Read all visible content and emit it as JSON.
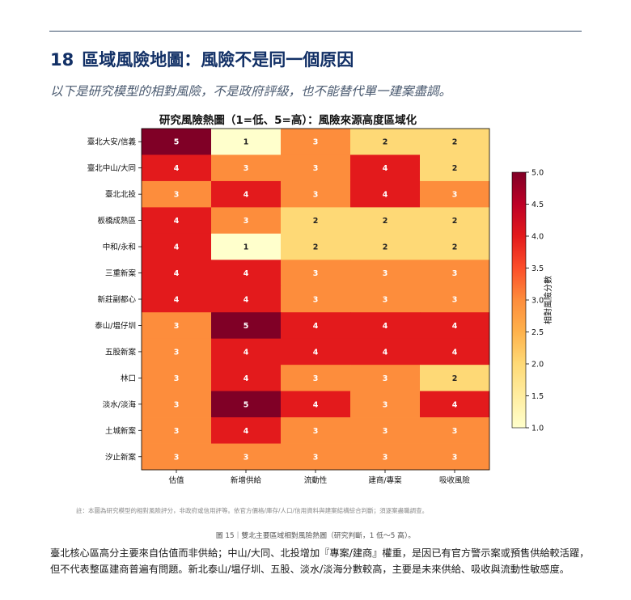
{
  "page": {
    "section_number": "18",
    "section_title": "區域風險地圖：風險不是同一個原因",
    "subtitle": "以下是研究模型的相對風險，不是政府評級，也不能替代單一建案盡調。",
    "note": "註：本圖為研究模型的相對風險評分，非政府或信用評等。依官方價格/庫存/人口/信用資料與建案結構綜合判斷；須逐案盡職調查。",
    "caption": "圖 15｜雙北主要區域相對風險熱圖（研究判斷，1 低～5 高）。",
    "paragraph_line1": "臺北核心區高分主要來自估值而非供給；中山/大同、北投增加『專案/建商』權重，是因已有官方警示案或預售供給較活躍，",
    "paragraph_line2": "但不代表整區建商普遍有問題。新北泰山/塭仔圳、五股、淡水/淡海分數較高，主要是未來供給、吸收與流動性敏感度。"
  },
  "chart_data": {
    "type": "heatmap",
    "title": "研究風險熱圖（1=低、5=高）：風險來源高度區域化",
    "x_categories": [
      "估值",
      "新增供給",
      "流動性",
      "建商/專案",
      "吸收風險"
    ],
    "y_categories": [
      "臺北大安/信義",
      "臺北中山/大同",
      "臺北北投",
      "板橋成熟區",
      "中和/永和",
      "三重新案",
      "新莊副都心",
      "泰山/塭仔圳",
      "五股新案",
      "林口",
      "淡水/淡海",
      "土城新案",
      "汐止新案"
    ],
    "values": [
      [
        5,
        1,
        3,
        2,
        2
      ],
      [
        4,
        3,
        3,
        4,
        2
      ],
      [
        3,
        4,
        3,
        4,
        3
      ],
      [
        4,
        3,
        2,
        2,
        2
      ],
      [
        4,
        1,
        2,
        2,
        2
      ],
      [
        4,
        4,
        3,
        3,
        3
      ],
      [
        4,
        4,
        3,
        3,
        3
      ],
      [
        3,
        5,
        4,
        4,
        4
      ],
      [
        3,
        4,
        4,
        4,
        4
      ],
      [
        3,
        4,
        3,
        3,
        2
      ],
      [
        3,
        5,
        4,
        3,
        4
      ],
      [
        3,
        4,
        3,
        3,
        3
      ],
      [
        3,
        3,
        3,
        3,
        3
      ]
    ],
    "colorbar": {
      "label": "相對風險分數",
      "range": [
        1.0,
        5.0
      ],
      "ticks": [
        "1.0",
        "1.5",
        "2.0",
        "2.5",
        "3.0",
        "3.5",
        "4.0",
        "4.5",
        "5.0"
      ],
      "colormap": "YlOrRd"
    },
    "colors": {
      "1": "#ffffcc",
      "2": "#fed976",
      "3": "#fd8d3c",
      "4": "#e31a1c",
      "5": "#800026"
    }
  }
}
